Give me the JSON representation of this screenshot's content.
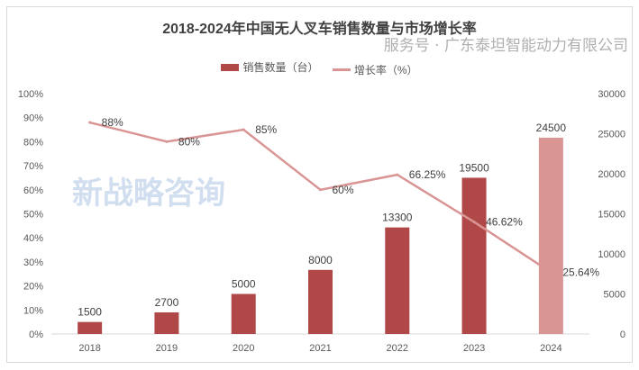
{
  "chart_data": {
    "type": "bar+line",
    "title": "2018-2024年中国无人叉车销售数量与市场增长率",
    "categories": [
      "2018",
      "2019",
      "2020",
      "2021",
      "2022",
      "2023",
      "2024"
    ],
    "series": [
      {
        "name": "销售数量（台）",
        "type": "bar",
        "axis": "right",
        "values": [
          1500,
          2700,
          5000,
          8000,
          13300,
          19500,
          24500
        ],
        "labels": [
          "1500",
          "2700",
          "5000",
          "8000",
          "13300",
          "19500",
          "24500"
        ],
        "color": "#b04848",
        "highlight_color": "#d99594"
      },
      {
        "name": "增长率（%）",
        "type": "line",
        "axis": "left",
        "values": [
          88,
          80,
          85,
          60,
          66.25,
          46.62,
          25.64
        ],
        "labels": [
          "88%",
          "80%",
          "85%",
          "60%",
          "66.25%",
          "46.62%",
          "25.64%"
        ],
        "color": "#d99594"
      }
    ],
    "left_axis": {
      "ylim": [
        0,
        100
      ],
      "ticks": [
        "0%",
        "10%",
        "20%",
        "30%",
        "40%",
        "50%",
        "60%",
        "70%",
        "80%",
        "90%",
        "100%"
      ]
    },
    "right_axis": {
      "ylim": [
        0,
        30000
      ],
      "ticks": [
        "0",
        "5000",
        "10000",
        "15000",
        "20000",
        "25000",
        "30000"
      ]
    },
    "grid": false,
    "legend_placement": "top"
  },
  "watermark": {
    "logo_text": "新战略咨询",
    "footer": "服务号 · 广东泰坦智能动力有限公司"
  }
}
